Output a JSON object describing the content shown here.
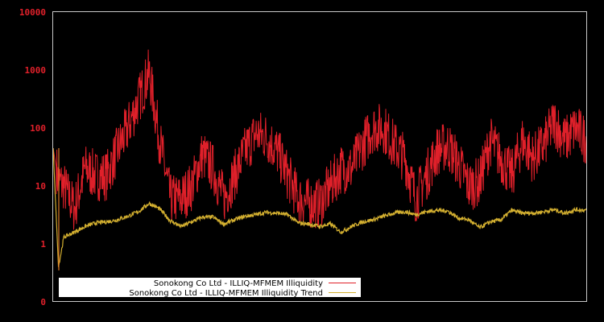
{
  "chart_data": {
    "type": "line",
    "title": "",
    "xlabel": "",
    "ylabel": "",
    "yscale": "log",
    "ylim": [
      0.1,
      10000
    ],
    "yticks": [
      {
        "label": "10000",
        "value": 10000
      },
      {
        "label": "1000",
        "value": 1000
      },
      {
        "label": "100",
        "value": 100
      },
      {
        "label": "10",
        "value": 10
      },
      {
        "label": "1",
        "value": 1
      },
      {
        "label": "0",
        "value": 0.1
      }
    ],
    "grid": false,
    "legend_position": "bottom-left, inside plot",
    "colors": {
      "background": "#000000",
      "axes": "#c8c8c8",
      "tick_labels": "#e0202a",
      "series_illiquidity": "#e0202a",
      "series_trend": "#d4b030",
      "legend_bg": "#ffffff"
    },
    "x_normalized": [
      0.0,
      0.01,
      0.02,
      0.04,
      0.06,
      0.08,
      0.1,
      0.12,
      0.14,
      0.16,
      0.18,
      0.2,
      0.22,
      0.24,
      0.26,
      0.28,
      0.3,
      0.32,
      0.34,
      0.36,
      0.38,
      0.4,
      0.42,
      0.44,
      0.46,
      0.48,
      0.5,
      0.52,
      0.54,
      0.56,
      0.58,
      0.6,
      0.62,
      0.64,
      0.66,
      0.68,
      0.7,
      0.72,
      0.74,
      0.76,
      0.78,
      0.8,
      0.82,
      0.84,
      0.86,
      0.88,
      0.9,
      0.92,
      0.94,
      0.96,
      0.98,
      1.0
    ],
    "series": [
      {
        "name": "Sonokong Co Ltd - ILLIQ-MFMEM Illiquidity",
        "values": [
          45,
          12,
          10,
          4,
          20,
          15,
          15,
          40,
          100,
          300,
          900,
          60,
          6,
          6,
          10,
          35,
          20,
          6,
          15,
          40,
          80,
          70,
          40,
          15,
          6,
          5,
          5,
          10,
          20,
          20,
          50,
          100,
          100,
          50,
          30,
          6,
          15,
          40,
          50,
          25,
          10,
          12,
          60,
          30,
          15,
          60,
          30,
          50,
          130,
          60,
          100,
          60
        ]
      },
      {
        "name": "Sonokong Co Ltd - ILLIQ-MFMEM Illiquidity Trend",
        "values": [
          45,
          0.4,
          1.3,
          1.6,
          2.0,
          2.3,
          2.4,
          2.6,
          3.0,
          3.6,
          5.0,
          4.0,
          2.5,
          2.0,
          2.4,
          2.9,
          2.9,
          2.2,
          2.6,
          3.0,
          3.2,
          3.5,
          3.4,
          3.2,
          2.3,
          2.2,
          2.0,
          2.2,
          1.6,
          2.0,
          2.4,
          2.6,
          3.0,
          3.4,
          3.6,
          3.2,
          3.6,
          3.8,
          3.7,
          2.8,
          2.6,
          1.9,
          2.4,
          2.6,
          3.8,
          3.4,
          3.4,
          3.6,
          3.9,
          3.4,
          3.9,
          3.8
        ]
      }
    ]
  },
  "legend": {
    "items": [
      {
        "label": "Sonokong Co Ltd - ILLIQ-MFMEM Illiquidity",
        "color": "#e0202a"
      },
      {
        "label": "Sonokong Co Ltd - ILLIQ-MFMEM Illiquidity Trend",
        "color": "#d4b030"
      }
    ]
  }
}
